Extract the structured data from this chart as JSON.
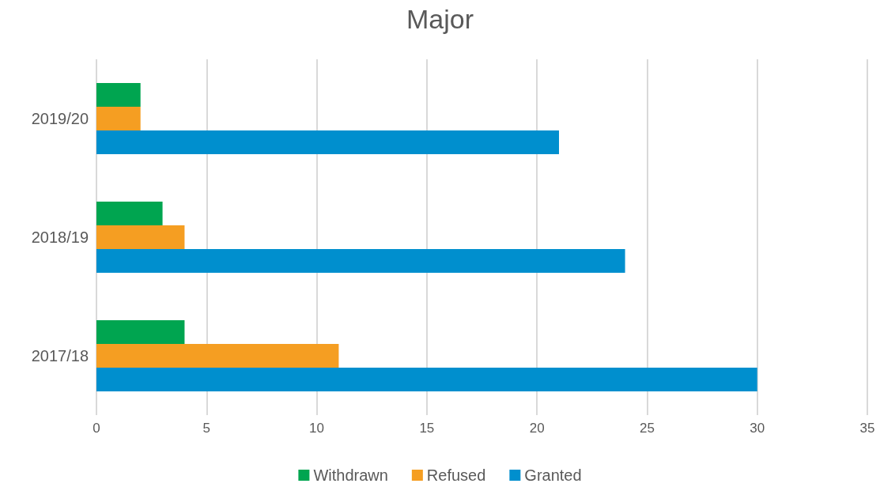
{
  "chart_data": {
    "type": "bar",
    "orientation": "horizontal",
    "title": "Major",
    "categories": [
      "2019/20",
      "2018/19",
      "2017/18"
    ],
    "series": [
      {
        "name": "Withdrawn",
        "color": "#00a550",
        "values": [
          2,
          3,
          4
        ]
      },
      {
        "name": "Refused",
        "color": "#f59e22",
        "values": [
          2,
          4,
          11
        ]
      },
      {
        "name": "Granted",
        "color": "#008fce",
        "values": [
          21,
          24,
          30
        ]
      }
    ],
    "xlim": [
      0,
      35
    ],
    "xticks": [
      0,
      5,
      10,
      15,
      20,
      25,
      30,
      35
    ],
    "grid": "x",
    "legend": "bottom"
  }
}
